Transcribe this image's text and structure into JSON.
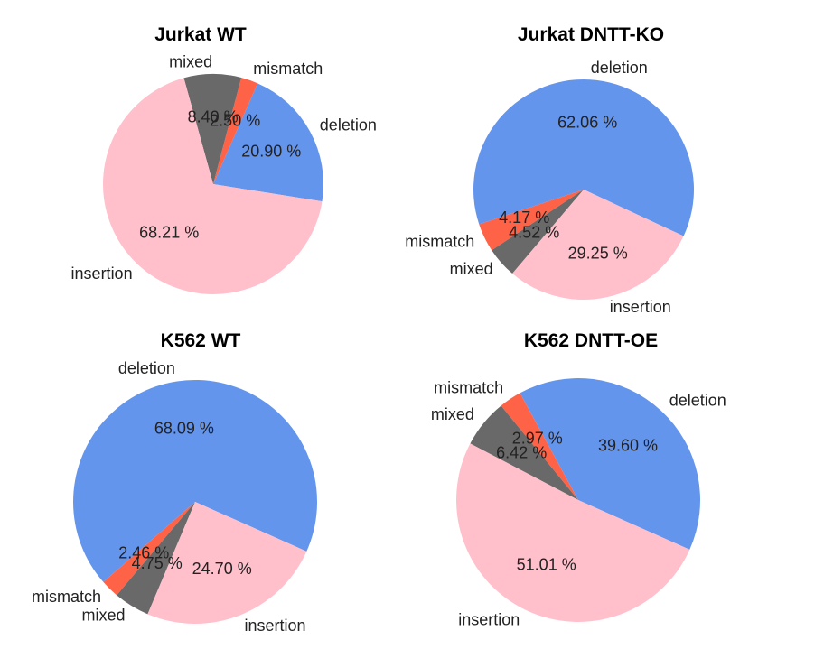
{
  "colors": {
    "insertion": "#ffc0cb",
    "deletion": "#6495ed",
    "mismatch": "#ff6347",
    "mixed": "#696969"
  },
  "chart_data": [
    {
      "type": "pie",
      "title": "Jurkat WT",
      "slices": [
        {
          "label": "deletion",
          "value": 20.9,
          "pct_text": "20.90 %"
        },
        {
          "label": "mismatch",
          "value": 2.5,
          "pct_text": "2.50 %"
        },
        {
          "label": "mixed",
          "value": 8.4,
          "pct_text": "8.40 %"
        },
        {
          "label": "insertion",
          "value": 68.21,
          "pct_text": "68.21 %"
        }
      ]
    },
    {
      "type": "pie",
      "title": "Jurkat DNTT-KO",
      "slices": [
        {
          "label": "deletion",
          "value": 62.06,
          "pct_text": "62.06 %"
        },
        {
          "label": "mismatch",
          "value": 4.17,
          "pct_text": "4.17 %"
        },
        {
          "label": "mixed",
          "value": 4.52,
          "pct_text": "4.52 %"
        },
        {
          "label": "insertion",
          "value": 29.25,
          "pct_text": "29.25 %"
        }
      ]
    },
    {
      "type": "pie",
      "title": "K562 WT",
      "slices": [
        {
          "label": "deletion",
          "value": 68.09,
          "pct_text": "68.09 %"
        },
        {
          "label": "mismatch",
          "value": 2.46,
          "pct_text": "2.46 %"
        },
        {
          "label": "mixed",
          "value": 4.75,
          "pct_text": "4.75 %"
        },
        {
          "label": "insertion",
          "value": 24.7,
          "pct_text": "24.70 %"
        }
      ]
    },
    {
      "type": "pie",
      "title": "K562 DNTT-OE",
      "slices": [
        {
          "label": "deletion",
          "value": 39.6,
          "pct_text": "39.60 %"
        },
        {
          "label": "mismatch",
          "value": 2.97,
          "pct_text": "2.97 %"
        },
        {
          "label": "mixed",
          "value": 6.42,
          "pct_text": "6.42 %"
        },
        {
          "label": "insertion",
          "value": 51.01,
          "pct_text": "51.01 %"
        }
      ]
    }
  ]
}
